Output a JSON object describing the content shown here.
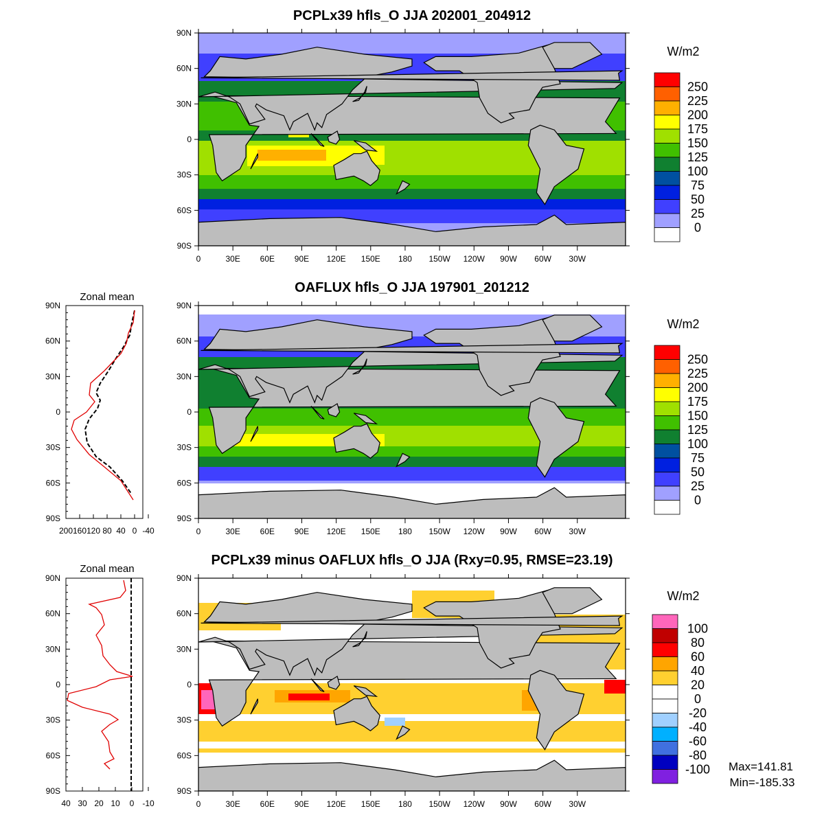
{
  "panels": [
    {
      "title": "PCPLx39 hfls_O JJA 202001_204912",
      "units": "W/m2",
      "levels": [
        "250",
        "225",
        "200",
        "175",
        "150",
        "125",
        "100",
        "75",
        "50",
        "25",
        "0"
      ],
      "colors": [
        "#ff0000",
        "#ff6000",
        "#ffb000",
        "#ffff00",
        "#a0e000",
        "#40c000",
        "#108030",
        "#0050a0",
        "#0020e0",
        "#4040ff",
        "#a0a0ff",
        "#ffffff"
      ]
    },
    {
      "title": "OAFLUX hfls_O JJA 197901_201212",
      "units": "W/m2",
      "levels": [
        "250",
        "225",
        "200",
        "175",
        "150",
        "125",
        "100",
        "75",
        "50",
        "25",
        "0"
      ],
      "colors": [
        "#ff0000",
        "#ff6000",
        "#ffb000",
        "#ffff00",
        "#a0e000",
        "#40c000",
        "#108030",
        "#0050a0",
        "#0020e0",
        "#4040ff",
        "#a0a0ff",
        "#ffffff"
      ],
      "zonal_title": "Zonal mean",
      "zonal_ticks": [
        "200",
        "160",
        "120",
        "80",
        "40",
        "0",
        "-40"
      ]
    },
    {
      "title": "PCPLx39 minus OAFLUX hfls_O JJA (Rxy=0.95, RMSE=23.19)",
      "units": "W/m2",
      "levels": [
        "100",
        "80",
        "60",
        "40",
        "20",
        "0",
        "-20",
        "-40",
        "-60",
        "-80",
        "-100"
      ],
      "colors": [
        "#ff66bb",
        "#c00000",
        "#ff0000",
        "#ffa500",
        "#ffd030",
        "#ffffff",
        "#ffffff",
        "#a0d0ff",
        "#00b0ff",
        "#4070e0",
        "#0000c0",
        "#8020e0"
      ],
      "zonal_title": "Zonal mean",
      "zonal_ticks": [
        "40",
        "30",
        "20",
        "10",
        "0",
        "-10"
      ],
      "max_label": "Max=141.81",
      "min_label": "Min=-185.33"
    }
  ],
  "lat_labels": [
    "90N",
    "60N",
    "30N",
    "0",
    "30S",
    "60S",
    "90S"
  ],
  "lon_labels": [
    "0",
    "30E",
    "60E",
    "90E",
    "120E",
    "150E",
    "180",
    "150W",
    "120W",
    "90W",
    "60W",
    "30W"
  ],
  "land_color": "#bdbdbd"
}
